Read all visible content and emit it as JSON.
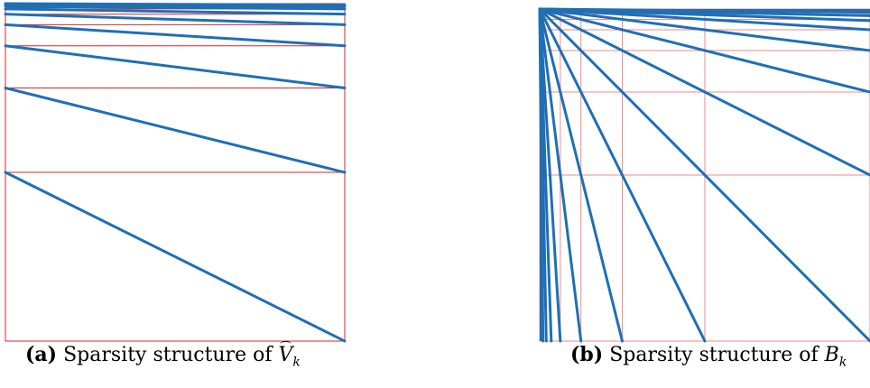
{
  "figure": {
    "panel_a": {
      "label": "(a)",
      "caption_text": "Sparsity structure of",
      "symbol": "V",
      "subscript": "k"
    },
    "panel_b": {
      "label": "(b)",
      "caption_text": "Sparsity structure of",
      "symbol": "B",
      "subscript": "k"
    },
    "colors": {
      "grid": "#d62728",
      "grid_light": "#f08a8a",
      "pattern": "#1f6fb5"
    }
  }
}
